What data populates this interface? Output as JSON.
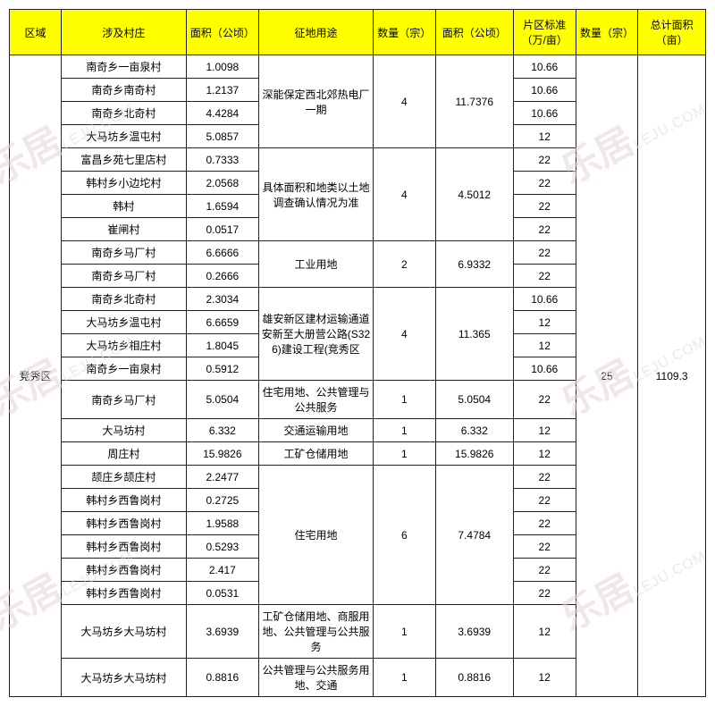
{
  "headers": {
    "region": "区域",
    "village": "涉及村庄",
    "area": "面积（公顷）",
    "use": "征地用途",
    "qty": "数量（宗）",
    "area2": "面积（公顷）",
    "std": "片区标准（万/亩）",
    "qty2": "数量（宗）",
    "total": "总计面积（亩）"
  },
  "region": "竞秀区",
  "summary_qty2": "25",
  "summary_total": "1109.3",
  "groups": [
    {
      "use": "深能保定西北郊热电厂一期",
      "qty": "4",
      "area2": "11.7376",
      "rows": [
        {
          "village": "南奇乡一亩泉村",
          "area": "1.0098",
          "std": "10.66"
        },
        {
          "village": "南奇乡南奇村",
          "area": "1.2137",
          "std": "10.66"
        },
        {
          "village": "南奇乡北奇村",
          "area": "4.4284",
          "std": "10.66"
        },
        {
          "village": "大马坊乡温屯村",
          "area": "5.0857",
          "std": "12"
        }
      ]
    },
    {
      "use": "具体面积和地类以土地调查确认情况为准",
      "qty": "4",
      "area2": "4.5012",
      "rows": [
        {
          "village": "富昌乡苑七里店村",
          "area": "0.7333",
          "std": "22"
        },
        {
          "village": "韩村乡小边坨村",
          "area": "2.0568",
          "std": "22"
        },
        {
          "village": "韩村",
          "area": "1.6594",
          "std": "22"
        },
        {
          "village": "崔闸村",
          "area": "0.0517",
          "std": "22"
        }
      ]
    },
    {
      "use": "工业用地",
      "qty": "2",
      "area2": "6.9332",
      "rows": [
        {
          "village": "南奇乡马厂村",
          "area": "6.6666",
          "std": "22"
        },
        {
          "village": "南奇乡马厂村",
          "area": "0.2666",
          "std": "22"
        }
      ]
    },
    {
      "use": "雄安新区建材运输通道安新至大册营公路(S326)建设工程(竞秀区",
      "qty": "4",
      "area2": "11.365",
      "rows": [
        {
          "village": "南奇乡北奇村",
          "area": "2.3034",
          "std": "10.66"
        },
        {
          "village": "大马坊乡温屯村",
          "area": "6.6659",
          "std": "12"
        },
        {
          "village": "大马坊乡相庄村",
          "area": "1.8045",
          "std": "12"
        },
        {
          "village": "南奇乡一亩泉村",
          "area": "0.5912",
          "std": "10.66"
        }
      ]
    },
    {
      "use": "住宅用地、公共管理与公共服务",
      "qty": "1",
      "area2": "5.0504",
      "rows": [
        {
          "village": "南奇乡马厂村",
          "area": "5.0504",
          "std": "22"
        }
      ]
    },
    {
      "use": "交通运输用地",
      "qty": "1",
      "area2": "6.332",
      "rows": [
        {
          "village": "大马坊村",
          "area": "6.332",
          "std": "12"
        }
      ]
    },
    {
      "use": "工矿仓储用地",
      "qty": "1",
      "area2": "15.9826",
      "rows": [
        {
          "village": "周庄村",
          "area": "15.9826",
          "std": "12"
        }
      ]
    },
    {
      "use": "住宅用地",
      "qty": "6",
      "area2": "7.4784",
      "rows": [
        {
          "village": "颉庄乡颉庄村",
          "area": "2.2477",
          "std": "22"
        },
        {
          "village": "韩村乡西鲁岗村",
          "area": "0.2725",
          "std": "22"
        },
        {
          "village": "韩村乡西鲁岗村",
          "area": "1.9588",
          "std": "22"
        },
        {
          "village": "韩村乡西鲁岗村",
          "area": "0.5293",
          "std": "22"
        },
        {
          "village": "韩村乡西鲁岗村",
          "area": "2.417",
          "std": "22"
        },
        {
          "village": "韩村乡西鲁岗村",
          "area": "0.0531",
          "std": "22"
        }
      ]
    },
    {
      "use": "工矿仓储用地、商服用地、公共管理与公共服务",
      "qty": "1",
      "area2": "3.6939",
      "rows": [
        {
          "village": "大马坊乡大马坊村",
          "area": "3.6939",
          "std": "12"
        }
      ]
    },
    {
      "use": "公共管理与公共服务用地、交通",
      "qty": "1",
      "area2": "0.8816",
      "rows": [
        {
          "village": "大马坊乡大马坊村",
          "area": "0.8816",
          "std": "12"
        }
      ]
    }
  ],
  "watermark": {
    "main": "乐居",
    "sub": "LEJU.COM"
  }
}
